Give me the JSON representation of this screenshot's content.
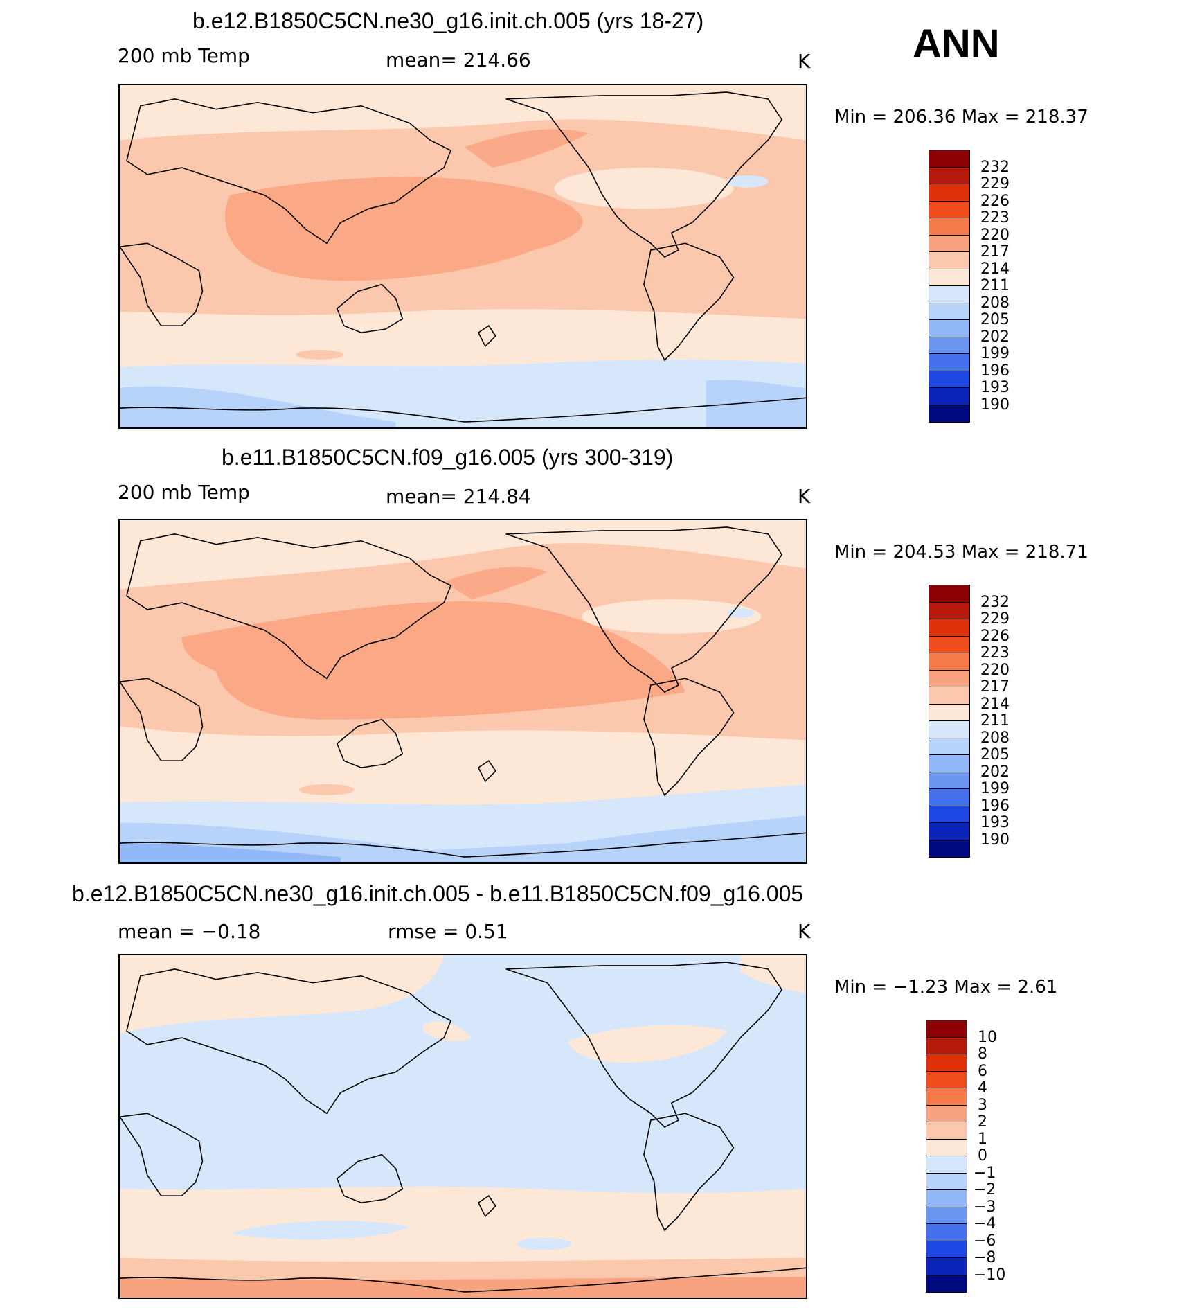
{
  "season": "ANN",
  "panels": [
    {
      "title": "b.e12.B1850C5CN.ne30_g16.init.ch.005 (yrs 18-27)",
      "variable": "200 mb Temp",
      "stat": "mean=  214.66",
      "units": "K",
      "minmax": "Min  =  206.36  Max  =  218.37",
      "levels": [
        "232",
        "229",
        "226",
        "223",
        "220",
        "217",
        "214",
        "211",
        "208",
        "205",
        "202",
        "199",
        "196",
        "193",
        "190"
      ]
    },
    {
      "title": "b.e11.B1850C5CN.f09_g16.005 (yrs 300-319)",
      "variable": "200 mb Temp",
      "stat": "mean=  214.84",
      "units": "K",
      "minmax": "Min  =  204.53  Max  =  218.71",
      "levels": [
        "232",
        "229",
        "226",
        "223",
        "220",
        "217",
        "214",
        "211",
        "208",
        "205",
        "202",
        "199",
        "196",
        "193",
        "190"
      ]
    },
    {
      "title": "b.e12.B1850C5CN.ne30_g16.init.ch.005 - b.e11.B1850C5CN.f09_g16.005",
      "stat_left": "mean  =    −0.18",
      "stat_mid": "rmse  =      0.51",
      "units": "K",
      "minmax": "Min  =    −1.23  Max  =      2.61",
      "levels": [
        "10",
        "8",
        "6",
        "4",
        "3",
        "2",
        "1",
        "0",
        "−1",
        "−2",
        "−3",
        "−4",
        "−6",
        "−8",
        "−10"
      ]
    }
  ],
  "colorbar_colors": [
    "#8b0000",
    "#b5190b",
    "#e0320a",
    "#f04d1c",
    "#f67a4a",
    "#f9a27f",
    "#fcc8ad",
    "#fde8d8",
    "#d6e7fb",
    "#b8d3fa",
    "#93b8f7",
    "#6c97f1",
    "#4470ec",
    "#1e46e2",
    "#0a25b8",
    "#000a80"
  ]
}
